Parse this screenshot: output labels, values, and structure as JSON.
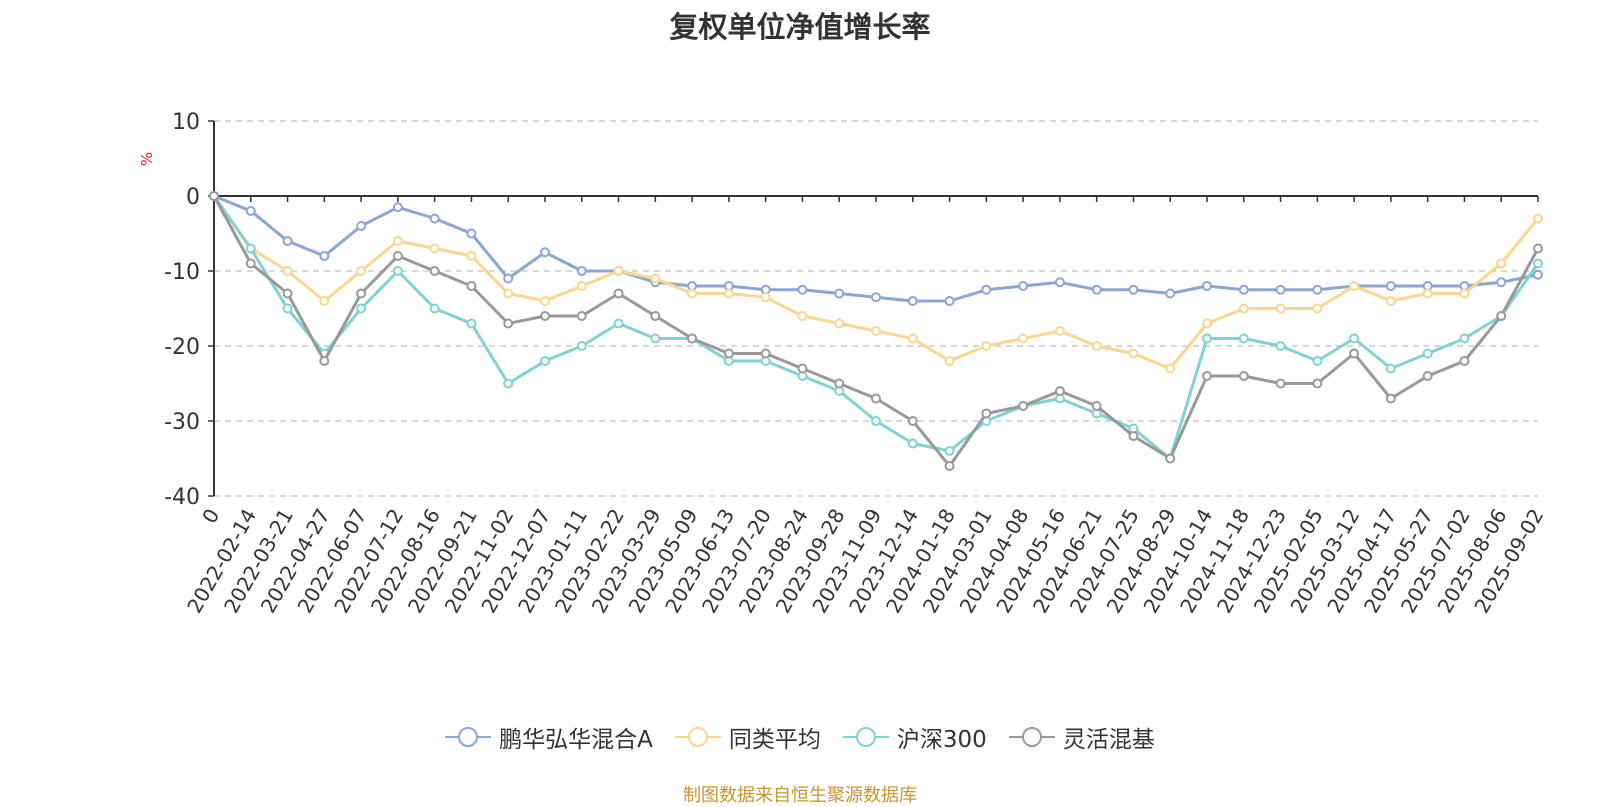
{
  "page": {
    "title": "复权单位净值增长率",
    "unit": "%",
    "source": "制图数据来自恒生聚源数据库"
  },
  "chart_data": {
    "type": "line",
    "title": "复权单位净值增长率",
    "ylabel": "%",
    "ylim": [
      -40,
      10
    ],
    "yticks": [
      10,
      0,
      -10,
      -20,
      -30,
      -40
    ],
    "grid": true,
    "legend_position": "bottom",
    "x": [
      "0",
      "2022-02-14",
      "2022-03-21",
      "2022-04-27",
      "2022-06-07",
      "2022-07-12",
      "2022-08-16",
      "2022-09-21",
      "2022-11-02",
      "2022-12-07",
      "2023-01-11",
      "2023-02-22",
      "2023-03-29",
      "2023-05-09",
      "2023-06-13",
      "2023-07-20",
      "2023-08-24",
      "2023-09-28",
      "2023-11-09",
      "2023-12-14",
      "2024-01-18",
      "2024-03-01",
      "2024-04-08",
      "2024-05-16",
      "2024-06-21",
      "2024-07-25",
      "2024-08-29",
      "2024-10-14",
      "2024-11-18",
      "2024-12-23",
      "2025-02-05",
      "2025-03-12",
      "2025-04-17",
      "2025-05-27",
      "2025-07-02",
      "2025-08-06",
      "2025-09-02"
    ],
    "series": [
      {
        "name": "鹏华弘华混合A",
        "color": "#8aa6d8",
        "values": [
          0,
          -2,
          -6,
          -8,
          -4,
          -1.5,
          -3,
          -5,
          -11,
          -7.5,
          -10,
          -10,
          -11.5,
          -12,
          -12,
          -12.5,
          -12.5,
          -13,
          -13.5,
          -14,
          -14,
          -12.5,
          -12,
          -11.5,
          -12.5,
          -12.5,
          -13,
          -12,
          -12.5,
          -12.5,
          -12.5,
          -12,
          -12,
          -12,
          -12,
          -11.5,
          -10.5
        ]
      },
      {
        "name": "同类平均",
        "color": "#fcd68f",
        "values": [
          0,
          -7,
          -10,
          -14,
          -10,
          -6,
          -7,
          -8,
          -13,
          -14,
          -12,
          -10,
          -11,
          -13,
          -13,
          -13.5,
          -16,
          -17,
          -18,
          -19,
          -22,
          -20,
          -19,
          -18,
          -20,
          -21,
          -23,
          -17,
          -15,
          -15,
          -15,
          -12,
          -14,
          -13,
          -13,
          -9,
          -3
        ]
      },
      {
        "name": "沪深300",
        "color": "#7fd3d3",
        "values": [
          0,
          -7,
          -15,
          -21,
          -15,
          -10,
          -15,
          -17,
          -25,
          -22,
          -20,
          -17,
          -19,
          -19,
          -22,
          -22,
          -24,
          -26,
          -30,
          -33,
          -34,
          -30,
          -28,
          -27,
          -29,
          -31,
          -35,
          -19,
          -19,
          -20,
          -22,
          -19,
          -23,
          -21,
          -19,
          -16,
          -9
        ]
      },
      {
        "name": "灵活混基",
        "color": "#999999",
        "values": [
          0,
          -9,
          -13,
          -22,
          -13,
          -8,
          -10,
          -12,
          -17,
          -16,
          -16,
          -13,
          -16,
          -19,
          -21,
          -21,
          -23,
          -25,
          -27,
          -30,
          -36,
          -29,
          -28,
          -26,
          -28,
          -32,
          -35,
          -24,
          -24,
          -25,
          -25,
          -21,
          -27,
          -24,
          -22,
          -16,
          -7
        ]
      }
    ]
  }
}
